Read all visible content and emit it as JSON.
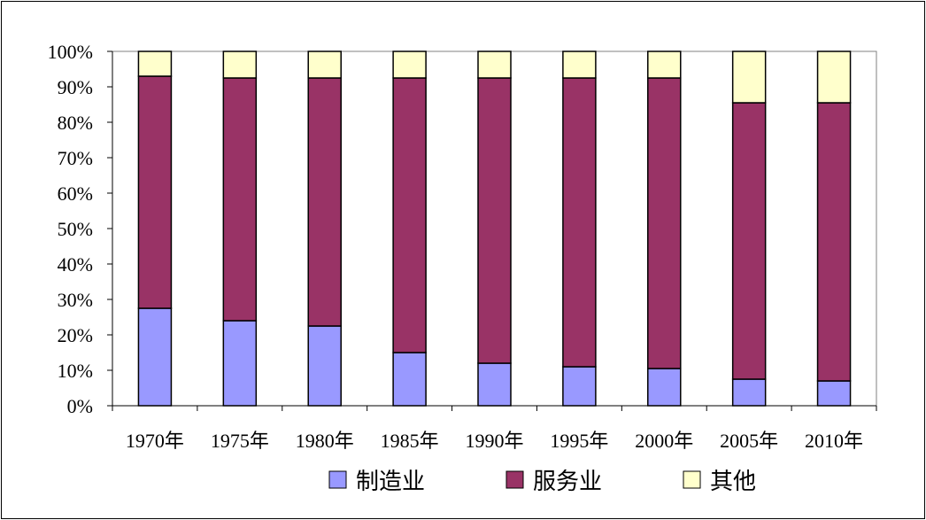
{
  "chart_data": {
    "type": "bar",
    "stacked": true,
    "title": "",
    "xlabel": "",
    "ylabel": "",
    "ylim": [
      0,
      100
    ],
    "y_ticks": [
      "0%",
      "10%",
      "20%",
      "30%",
      "40%",
      "50%",
      "60%",
      "70%",
      "80%",
      "90%",
      "100%"
    ],
    "categories": [
      "1970年",
      "1975年",
      "1980年",
      "1985年",
      "1990年",
      "1995年",
      "2000年",
      "2005年",
      "2010年"
    ],
    "series": [
      {
        "name": "制造业",
        "color": "#9999ff",
        "values": [
          27.5,
          24,
          22.5,
          15,
          12,
          11,
          10.5,
          7.5,
          7
        ]
      },
      {
        "name": "服务业",
        "color": "#993366",
        "values": [
          65.5,
          68.5,
          70,
          77.5,
          80.5,
          81.5,
          82,
          78,
          78.5
        ]
      },
      {
        "name": "其他",
        "color": "#ffffcc",
        "values": [
          7,
          7.5,
          7.5,
          7.5,
          7.5,
          7.5,
          7.5,
          14.5,
          14.5
        ]
      }
    ],
    "legend_position": "bottom",
    "grid": false
  }
}
